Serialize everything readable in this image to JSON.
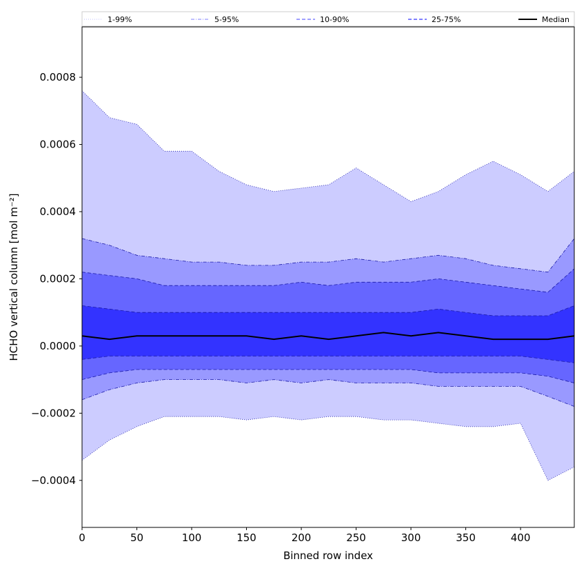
{
  "chart_data": {
    "type": "area",
    "xlabel": "Binned row index",
    "ylabel": "HCHO vertical column [mol m⁻²]",
    "xlim": [
      0,
      449
    ],
    "ylim": [
      -0.00054,
      0.00095
    ],
    "x_ticks": [
      0,
      50,
      100,
      150,
      200,
      250,
      300,
      350,
      400
    ],
    "y_ticks": [
      -0.0004,
      -0.0002,
      0.0,
      0.0002,
      0.0004,
      0.0006,
      0.0008
    ],
    "y_tick_labels": [
      "−0.0004",
      "−0.0002",
      "0.0000",
      "0.0002",
      "0.0004",
      "0.0006",
      "0.0008"
    ],
    "grid": false,
    "legend_placement": "top, above plot",
    "x_step": 25,
    "series": [
      {
        "name": "1-99%",
        "color": "#ccccff",
        "style": "dotted",
        "upper": [
          0.00076,
          0.00068,
          0.00066,
          0.00058,
          0.00058,
          0.00052,
          0.00048,
          0.00046,
          0.00047,
          0.00048,
          0.00053,
          0.00048,
          0.00043,
          0.00046,
          0.00051,
          0.00055,
          0.00051,
          0.00046,
          0.00052
        ],
        "lower": [
          -0.00034,
          -0.00028,
          -0.00024,
          -0.00021,
          -0.00021,
          -0.00021,
          -0.00022,
          -0.00021,
          -0.00022,
          -0.00021,
          -0.00021,
          -0.00022,
          -0.00022,
          -0.00023,
          -0.00024,
          -0.00024,
          -0.00023,
          -0.0004,
          -0.00036
        ]
      },
      {
        "name": "5-95%",
        "color": "#9999ff",
        "style": "dashdot",
        "upper": [
          0.00032,
          0.0003,
          0.00027,
          0.00026,
          0.00025,
          0.00025,
          0.00024,
          0.00024,
          0.00025,
          0.00025,
          0.00026,
          0.00025,
          0.00026,
          0.00027,
          0.00026,
          0.00024,
          0.00023,
          0.00022,
          0.00032
        ],
        "lower": [
          -0.00016,
          -0.00013,
          -0.00011,
          -0.0001,
          -0.0001,
          -0.0001,
          -0.00011,
          -0.0001,
          -0.00011,
          -0.0001,
          -0.00011,
          -0.00011,
          -0.00011,
          -0.00012,
          -0.00012,
          -0.00012,
          -0.00012,
          -0.00015,
          -0.00018
        ]
      },
      {
        "name": "10-90%",
        "color": "#6666ff",
        "style": "dashed",
        "upper": [
          0.00022,
          0.00021,
          0.0002,
          0.00018,
          0.00018,
          0.00018,
          0.00018,
          0.00018,
          0.00019,
          0.00018,
          0.00019,
          0.00019,
          0.00019,
          0.0002,
          0.00019,
          0.00018,
          0.00017,
          0.00016,
          0.00023
        ],
        "lower": [
          -0.0001,
          -8e-05,
          -7e-05,
          -7e-05,
          -7e-05,
          -7e-05,
          -7e-05,
          -7e-05,
          -7e-05,
          -7e-05,
          -7e-05,
          -7e-05,
          -7e-05,
          -8e-05,
          -8e-05,
          -8e-05,
          -8e-05,
          -9e-05,
          -0.00011
        ]
      },
      {
        "name": "25-75%",
        "color": "#3333ff",
        "style": "dashed",
        "upper": [
          0.00012,
          0.00011,
          0.0001,
          0.0001,
          0.0001,
          0.0001,
          0.0001,
          0.0001,
          0.0001,
          0.0001,
          0.0001,
          0.0001,
          0.0001,
          0.00011,
          0.0001,
          9e-05,
          9e-05,
          9e-05,
          0.00012
        ],
        "lower": [
          -4e-05,
          -3e-05,
          -3e-05,
          -3e-05,
          -3e-05,
          -3e-05,
          -3e-05,
          -3e-05,
          -3e-05,
          -3e-05,
          -3e-05,
          -3e-05,
          -3e-05,
          -3e-05,
          -3e-05,
          -3e-05,
          -3e-05,
          -4e-05,
          -5e-05
        ]
      },
      {
        "name": "Median",
        "color": "#000000",
        "style": "solid",
        "values": [
          3e-05,
          2e-05,
          3e-05,
          3e-05,
          3e-05,
          3e-05,
          3e-05,
          2e-05,
          3e-05,
          2e-05,
          3e-05,
          4e-05,
          3e-05,
          4e-05,
          3e-05,
          2e-05,
          2e-05,
          2e-05,
          3e-05
        ]
      }
    ]
  }
}
